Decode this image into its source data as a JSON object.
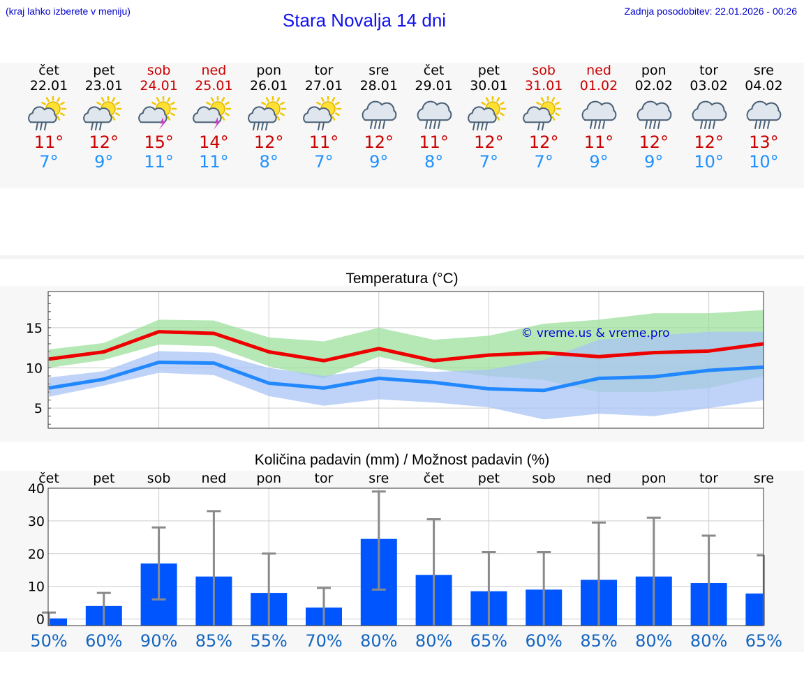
{
  "header": {
    "menu_hint": "(kraj lahko izberete v meniju)",
    "title": "Stara Novalja 14 dni",
    "last_update": "Zadnja posodobitev: 22.01.2026 - 00:26"
  },
  "colors": {
    "max_temp": "#cc0000",
    "min_temp": "#1e90ff",
    "weekend": "#cc0000",
    "bar": "#0055ff",
    "probability": "#1565c0"
  },
  "days": [
    {
      "name": "čet",
      "date": "22.01",
      "weekend": false,
      "icon": "sun-cloud-rain-icon",
      "max": "11°",
      "min": "7°"
    },
    {
      "name": "pet",
      "date": "23.01",
      "weekend": false,
      "icon": "sun-cloud-rain-icon",
      "max": "12°",
      "min": "9°"
    },
    {
      "name": "sob",
      "date": "24.01",
      "weekend": true,
      "icon": "sun-cloud-thunder-icon",
      "max": "15°",
      "min": "11°"
    },
    {
      "name": "ned",
      "date": "25.01",
      "weekend": true,
      "icon": "sun-cloud-thunder-icon",
      "max": "14°",
      "min": "11°"
    },
    {
      "name": "pon",
      "date": "26.01",
      "weekend": false,
      "icon": "sun-cloud-heavy-rain-icon",
      "max": "12°",
      "min": "8°"
    },
    {
      "name": "tor",
      "date": "27.01",
      "weekend": false,
      "icon": "sun-cloud-light-rain-icon",
      "max": "11°",
      "min": "7°"
    },
    {
      "name": "sre",
      "date": "28.01",
      "weekend": false,
      "icon": "cloud-rain-icon",
      "max": "12°",
      "min": "9°"
    },
    {
      "name": "čet",
      "date": "29.01",
      "weekend": false,
      "icon": "cloud-rain-icon",
      "max": "11°",
      "min": "8°"
    },
    {
      "name": "pet",
      "date": "30.01",
      "weekend": false,
      "icon": "sun-cloud-heavy-rain-icon",
      "max": "12°",
      "min": "7°"
    },
    {
      "name": "sob",
      "date": "31.01",
      "weekend": true,
      "icon": "sun-cloud-light-rain-icon",
      "max": "12°",
      "min": "7°"
    },
    {
      "name": "ned",
      "date": "01.02",
      "weekend": true,
      "icon": "cloud-rain-icon",
      "max": "11°",
      "min": "9°"
    },
    {
      "name": "pon",
      "date": "02.02",
      "weekend": false,
      "icon": "cloud-rain-icon",
      "max": "12°",
      "min": "9°"
    },
    {
      "name": "tor",
      "date": "03.02",
      "weekend": false,
      "icon": "cloud-rain-icon",
      "max": "12°",
      "min": "10°"
    },
    {
      "name": "sre",
      "date": "04.02",
      "weekend": false,
      "icon": "cloud-rain-icon",
      "max": "13°",
      "min": "10°"
    }
  ],
  "chart_data": [
    {
      "type": "line",
      "title": "Temperatura (°C)",
      "xlabel": "",
      "ylabel": "",
      "ylim": [
        2.5,
        19.5
      ],
      "yticks": [
        5,
        10,
        15
      ],
      "grid": true,
      "x": [
        0,
        1,
        2,
        3,
        4,
        5,
        6,
        7,
        8,
        9,
        10,
        11,
        12,
        13
      ],
      "series": [
        {
          "name": "max",
          "color": "#ee0000",
          "values": [
            11.1,
            12.0,
            14.5,
            14.3,
            12.0,
            10.9,
            12.4,
            10.9,
            11.6,
            11.9,
            11.4,
            11.9,
            12.1,
            13.0
          ]
        },
        {
          "name": "min",
          "color": "#2288ff",
          "values": [
            7.5,
            8.6,
            10.7,
            10.6,
            8.1,
            7.5,
            8.7,
            8.2,
            7.4,
            7.2,
            8.7,
            8.9,
            9.7,
            10.1
          ]
        }
      ],
      "bands": [
        {
          "name": "max-range",
          "color": "#9de09d",
          "upper": [
            12.3,
            13.1,
            16.0,
            15.9,
            13.8,
            13.3,
            15.0,
            13.5,
            14.0,
            15.5,
            16.0,
            16.8,
            16.8,
            17.2
          ],
          "lower": [
            10.0,
            11.0,
            12.9,
            12.7,
            10.2,
            8.7,
            11.4,
            9.9,
            9.0,
            8.5,
            7.0,
            7.0,
            7.5,
            9.0
          ]
        },
        {
          "name": "min-range",
          "color": "#a8c4f4",
          "upper": [
            8.8,
            9.6,
            12.1,
            11.9,
            10.0,
            9.0,
            9.9,
            9.5,
            9.8,
            11.0,
            13.5,
            14.0,
            14.5,
            14.5
          ],
          "lower": [
            6.4,
            7.8,
            9.4,
            9.1,
            6.5,
            5.3,
            6.1,
            5.7,
            5.1,
            3.6,
            4.3,
            4.0,
            5.0,
            6.0
          ]
        }
      ],
      "annotation": "© vreme.us & vreme.pro",
      "annotation_position": "upper-right"
    },
    {
      "type": "bar",
      "title": "Količina padavin (mm) / Možnost padavin (%)",
      "categories": [
        "čet",
        "pet",
        "sob",
        "ned",
        "pon",
        "tor",
        "sre",
        "čet",
        "pet",
        "sob",
        "ned",
        "pon",
        "tor",
        "sre"
      ],
      "ylim": [
        -2,
        40
      ],
      "yticks": [
        0,
        10,
        20,
        30,
        40
      ],
      "grid": true,
      "values": [
        0.2,
        4,
        17,
        13,
        8,
        3.5,
        24.5,
        13.5,
        8.5,
        9,
        12,
        13,
        11,
        7.8
      ],
      "error_high": [
        2,
        8,
        28,
        33,
        20,
        9.5,
        39,
        30.5,
        20.5,
        20.5,
        29.5,
        31,
        25.5,
        19.5
      ],
      "error_low": [
        -2,
        -2,
        6,
        -2,
        -2,
        -2,
        9,
        -2,
        -2,
        -2,
        -2,
        -2,
        -2,
        -2
      ],
      "probabilities": [
        "50%",
        "60%",
        "90%",
        "85%",
        "55%",
        "70%",
        "80%",
        "80%",
        "65%",
        "60%",
        "85%",
        "80%",
        "80%",
        "65%"
      ]
    }
  ]
}
